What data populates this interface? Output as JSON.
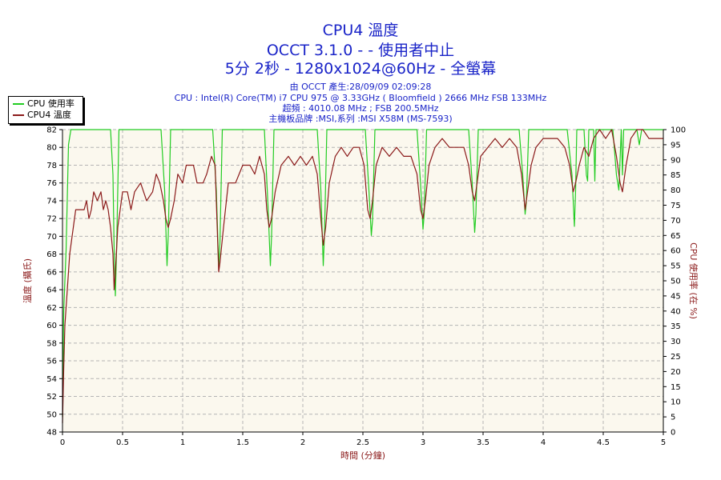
{
  "header": {
    "title_line1": "CPU4 溫度",
    "title_line2": "OCCT 3.1.0 -  - 使用者中止",
    "title_line3": "5分 2秒 - 1280x1024@60Hz - 全螢幕",
    "info_line1": "由 OCCT 產生:28/09/09 02:09:28",
    "info_line2": "CPU : Intel(R) Core(TM) i7 CPU 975 @ 3.33GHz ( Bloomfield ) 2666 MHz FSB 133MHz",
    "info_line3": "超頻 : 4010.08 MHz ; FSB 200.5MHz",
    "info_line4": "主機板品牌 :MSI,系列 :MSI X58M (MS-7593)"
  },
  "colors": {
    "cpu_usage": "#22cc22",
    "cpu_temp": "#8b1a1a",
    "plot_bg": "#fbf8ee",
    "grid": "#b4b4b4",
    "title": "#1a24c8"
  },
  "chart_data": {
    "type": "line",
    "xlabel": "時間 (分鐘)",
    "ylabel_left": "溫度 (攝氏)",
    "ylabel_right": "CPU 使用率 (在 %)",
    "xlim": [
      0,
      5
    ],
    "ylim_left": [
      48,
      82
    ],
    "ylim_right": [
      0,
      100
    ],
    "x_ticks": [
      "0",
      "0.5",
      "1",
      "1.5",
      "2",
      "2.5",
      "3",
      "3.5",
      "4",
      "4.5",
      "5"
    ],
    "y_ticks_left": [
      "48",
      "50",
      "52",
      "54",
      "56",
      "58",
      "60",
      "62",
      "64",
      "66",
      "68",
      "70",
      "72",
      "74",
      "76",
      "78",
      "80",
      "82"
    ],
    "y_ticks_right": [
      "0",
      "5",
      "10",
      "15",
      "20",
      "25",
      "30",
      "35",
      "40",
      "45",
      "50",
      "55",
      "60",
      "65",
      "70",
      "75",
      "80",
      "85",
      "90",
      "95",
      "100"
    ],
    "grid": true,
    "legend_position": "top-left",
    "series": [
      {
        "name": "CPU 使用率",
        "axis": "right",
        "points": [
          [
            0,
            5
          ],
          [
            0.01,
            40
          ],
          [
            0.03,
            60
          ],
          [
            0.05,
            95
          ],
          [
            0.07,
            100
          ],
          [
            0.09,
            100
          ],
          [
            0.4,
            100
          ],
          [
            0.42,
            85
          ],
          [
            0.43,
            60
          ],
          [
            0.44,
            45
          ],
          [
            0.45,
            60
          ],
          [
            0.47,
            100
          ],
          [
            0.82,
            100
          ],
          [
            0.85,
            80
          ],
          [
            0.87,
            55
          ],
          [
            0.88,
            65
          ],
          [
            0.9,
            100
          ],
          [
            1.25,
            100
          ],
          [
            1.28,
            80
          ],
          [
            1.3,
            55
          ],
          [
            1.31,
            62
          ],
          [
            1.33,
            100
          ],
          [
            1.68,
            100
          ],
          [
            1.71,
            75
          ],
          [
            1.73,
            55
          ],
          [
            1.74,
            65
          ],
          [
            1.76,
            100
          ],
          [
            2.12,
            100
          ],
          [
            2.15,
            80
          ],
          [
            2.17,
            55
          ],
          [
            2.18,
            65
          ],
          [
            2.2,
            100
          ],
          [
            2.52,
            100
          ],
          [
            2.55,
            80
          ],
          [
            2.57,
            65
          ],
          [
            2.58,
            70
          ],
          [
            2.6,
            100
          ],
          [
            2.95,
            100
          ],
          [
            2.98,
            82
          ],
          [
            3.0,
            67
          ],
          [
            3.01,
            72
          ],
          [
            3.03,
            100
          ],
          [
            3.38,
            100
          ],
          [
            3.41,
            82
          ],
          [
            3.43,
            66
          ],
          [
            3.44,
            72
          ],
          [
            3.46,
            100
          ],
          [
            3.8,
            100
          ],
          [
            3.83,
            85
          ],
          [
            3.85,
            72
          ],
          [
            3.86,
            76
          ],
          [
            3.88,
            100
          ],
          [
            4.2,
            100
          ],
          [
            4.24,
            85
          ],
          [
            4.26,
            68
          ],
          [
            4.27,
            80
          ],
          [
            4.28,
            100
          ],
          [
            4.34,
            100
          ],
          [
            4.36,
            85
          ],
          [
            4.37,
            83
          ],
          [
            4.38,
            100
          ],
          [
            4.42,
            100
          ],
          [
            4.43,
            83
          ],
          [
            4.44,
            100
          ],
          [
            4.58,
            100
          ],
          [
            4.61,
            85
          ],
          [
            4.63,
            80
          ],
          [
            4.65,
            100
          ],
          [
            4.66,
            85
          ],
          [
            4.67,
            100
          ],
          [
            4.78,
            100
          ],
          [
            4.8,
            95
          ],
          [
            4.82,
            100
          ],
          [
            5,
            100
          ]
        ]
      },
      {
        "name": "CPU4 溫度",
        "axis": "left",
        "points": [
          [
            0,
            49
          ],
          [
            0.01,
            55
          ],
          [
            0.02,
            60
          ],
          [
            0.04,
            64
          ],
          [
            0.06,
            68
          ],
          [
            0.08,
            70
          ],
          [
            0.1,
            72
          ],
          [
            0.11,
            73
          ],
          [
            0.18,
            73
          ],
          [
            0.2,
            74
          ],
          [
            0.22,
            72
          ],
          [
            0.24,
            73
          ],
          [
            0.26,
            75
          ],
          [
            0.29,
            74
          ],
          [
            0.32,
            75
          ],
          [
            0.34,
            73
          ],
          [
            0.36,
            74
          ],
          [
            0.38,
            73
          ],
          [
            0.4,
            71
          ],
          [
            0.42,
            68
          ],
          [
            0.43,
            64
          ],
          [
            0.44,
            66
          ],
          [
            0.46,
            71
          ],
          [
            0.48,
            73
          ],
          [
            0.5,
            75
          ],
          [
            0.54,
            75
          ],
          [
            0.57,
            73
          ],
          [
            0.6,
            75
          ],
          [
            0.65,
            76
          ],
          [
            0.7,
            74
          ],
          [
            0.75,
            75
          ],
          [
            0.78,
            77
          ],
          [
            0.81,
            76
          ],
          [
            0.84,
            74
          ],
          [
            0.86,
            72
          ],
          [
            0.88,
            71
          ],
          [
            0.9,
            72
          ],
          [
            0.93,
            74
          ],
          [
            0.96,
            77
          ],
          [
            1.0,
            76
          ],
          [
            1.03,
            78
          ],
          [
            1.09,
            78
          ],
          [
            1.12,
            76
          ],
          [
            1.17,
            76
          ],
          [
            1.2,
            77
          ],
          [
            1.24,
            79
          ],
          [
            1.27,
            78
          ],
          [
            1.29,
            70
          ],
          [
            1.3,
            66
          ],
          [
            1.31,
            67
          ],
          [
            1.34,
            71
          ],
          [
            1.38,
            76
          ],
          [
            1.44,
            76
          ],
          [
            1.47,
            77
          ],
          [
            1.5,
            78
          ],
          [
            1.56,
            78
          ],
          [
            1.6,
            77
          ],
          [
            1.64,
            79
          ],
          [
            1.68,
            77
          ],
          [
            1.7,
            73
          ],
          [
            1.72,
            71
          ],
          [
            1.74,
            72
          ],
          [
            1.77,
            75
          ],
          [
            1.82,
            78
          ],
          [
            1.88,
            79
          ],
          [
            1.93,
            78
          ],
          [
            1.98,
            79
          ],
          [
            2.03,
            78
          ],
          [
            2.08,
            79
          ],
          [
            2.12,
            77
          ],
          [
            2.15,
            72
          ],
          [
            2.17,
            69
          ],
          [
            2.19,
            71
          ],
          [
            2.22,
            76
          ],
          [
            2.27,
            79
          ],
          [
            2.32,
            80
          ],
          [
            2.37,
            79
          ],
          [
            2.42,
            80
          ],
          [
            2.47,
            80
          ],
          [
            2.51,
            78
          ],
          [
            2.54,
            73
          ],
          [
            2.56,
            72
          ],
          [
            2.58,
            74
          ],
          [
            2.61,
            78
          ],
          [
            2.66,
            80
          ],
          [
            2.72,
            79
          ],
          [
            2.78,
            80
          ],
          [
            2.84,
            79
          ],
          [
            2.9,
            79
          ],
          [
            2.95,
            77
          ],
          [
            2.98,
            73
          ],
          [
            3.0,
            72
          ],
          [
            3.02,
            74
          ],
          [
            3.05,
            78
          ],
          [
            3.1,
            80
          ],
          [
            3.16,
            81
          ],
          [
            3.22,
            80
          ],
          [
            3.28,
            80
          ],
          [
            3.34,
            80
          ],
          [
            3.38,
            78
          ],
          [
            3.41,
            75
          ],
          [
            3.43,
            74
          ],
          [
            3.45,
            76
          ],
          [
            3.48,
            79
          ],
          [
            3.54,
            80
          ],
          [
            3.6,
            81
          ],
          [
            3.66,
            80
          ],
          [
            3.72,
            81
          ],
          [
            3.78,
            80
          ],
          [
            3.82,
            77
          ],
          [
            3.85,
            73
          ],
          [
            3.87,
            75
          ],
          [
            3.9,
            78
          ],
          [
            3.94,
            80
          ],
          [
            4.0,
            81
          ],
          [
            4.06,
            81
          ],
          [
            4.12,
            81
          ],
          [
            4.18,
            80
          ],
          [
            4.22,
            78
          ],
          [
            4.25,
            75
          ],
          [
            4.27,
            76
          ],
          [
            4.3,
            78
          ],
          [
            4.34,
            80
          ],
          [
            4.38,
            79
          ],
          [
            4.42,
            81
          ],
          [
            4.47,
            82
          ],
          [
            4.52,
            81
          ],
          [
            4.57,
            82
          ],
          [
            4.61,
            79
          ],
          [
            4.64,
            76
          ],
          [
            4.66,
            75
          ],
          [
            4.69,
            78
          ],
          [
            4.73,
            81
          ],
          [
            4.78,
            82
          ],
          [
            4.83,
            82
          ],
          [
            4.88,
            81
          ],
          [
            4.94,
            81
          ],
          [
            5,
            81
          ]
        ]
      }
    ]
  }
}
